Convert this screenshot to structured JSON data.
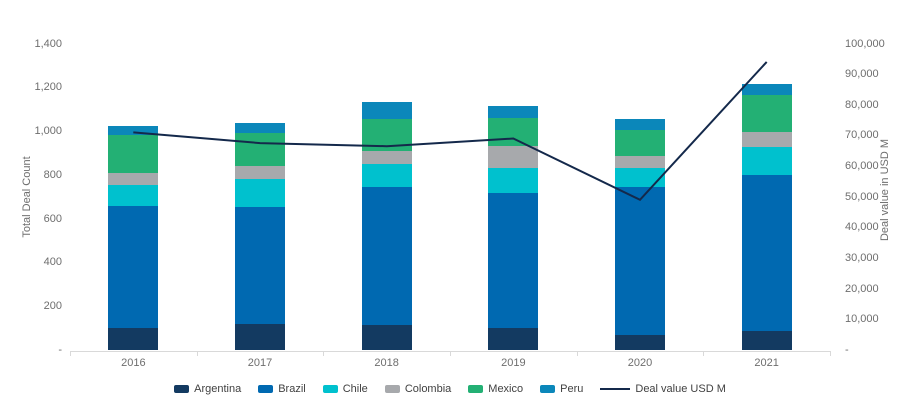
{
  "chart_data": {
    "type": "bar",
    "subtype": "stacked-bars-with-line-overlay",
    "title": "",
    "categories": [
      "2016",
      "2017",
      "2018",
      "2019",
      "2020",
      "2021"
    ],
    "series": [
      {
        "name": "Argentina",
        "color": "#133A61",
        "values": [
          100,
          120,
          115,
          100,
          70,
          85
        ]
      },
      {
        "name": "Brazil",
        "color": "#0069B1",
        "values": [
          560,
          535,
          630,
          615,
          675,
          715
        ]
      },
      {
        "name": "Chile",
        "color": "#00C1CE",
        "values": [
          95,
          125,
          105,
          115,
          85,
          125
        ]
      },
      {
        "name": "Colombia",
        "color": "#A7A9AC",
        "values": [
          55,
          60,
          60,
          100,
          55,
          70
        ]
      },
      {
        "name": "Mexico",
        "color": "#23B074",
        "values": [
          170,
          150,
          145,
          130,
          120,
          170
        ]
      },
      {
        "name": "Peru",
        "color": "#0B87BA",
        "values": [
          45,
          45,
          80,
          55,
          50,
          50
        ]
      }
    ],
    "line_series": {
      "name": "Deal value USD M",
      "color": "#14294B",
      "values": [
        71000,
        67500,
        66500,
        69000,
        49000,
        94000
      ]
    },
    "left_axis": {
      "label": "Total Deal Count",
      "min": 0,
      "max": 1400,
      "step": 200,
      "tick_labels": [
        "1,400",
        "1,200",
        "1,000",
        "800",
        "600",
        "400",
        "200",
        "-"
      ]
    },
    "right_axis": {
      "label": "Deal value in USD M",
      "min": 0,
      "max": 100000,
      "step": 10000,
      "tick_labels": [
        "100,000",
        "90,000",
        "80,000",
        "70,000",
        "60,000",
        "50,000",
        "40,000",
        "30,000",
        "20,000",
        "10,000",
        "-"
      ]
    },
    "grid": false,
    "legend_position": "bottom"
  },
  "colors": {
    "background": "#FFFFFF",
    "axis_line": "#D9D9D9",
    "tick_text": "#6E6E6E",
    "legend_text": "#414141"
  }
}
